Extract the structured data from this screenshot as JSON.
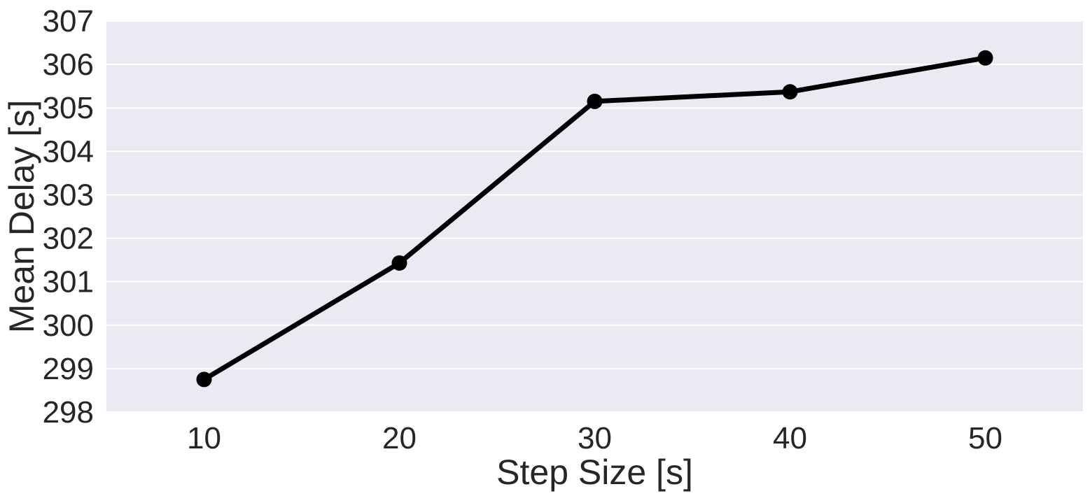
{
  "chart_data": {
    "type": "line",
    "title": "",
    "xlabel": "Step Size [s]",
    "ylabel": "Mean Delay [s]",
    "x": [
      10,
      20,
      30,
      40,
      50
    ],
    "series": [
      {
        "values": [
          298.75,
          301.43,
          305.15,
          305.37,
          306.15
        ],
        "color": "#000000",
        "marker": "circle"
      }
    ],
    "xlim": [
      5,
      55
    ],
    "ylim": [
      298,
      307
    ],
    "xticks": [
      10,
      20,
      30,
      40,
      50
    ],
    "yticks": [
      298,
      299,
      300,
      301,
      302,
      303,
      304,
      305,
      306,
      307
    ],
    "grid": true,
    "grid_axis": "y",
    "background_color": "#EAEAF2",
    "grid_color": "#FFFFFF",
    "text_color": "#262626"
  }
}
